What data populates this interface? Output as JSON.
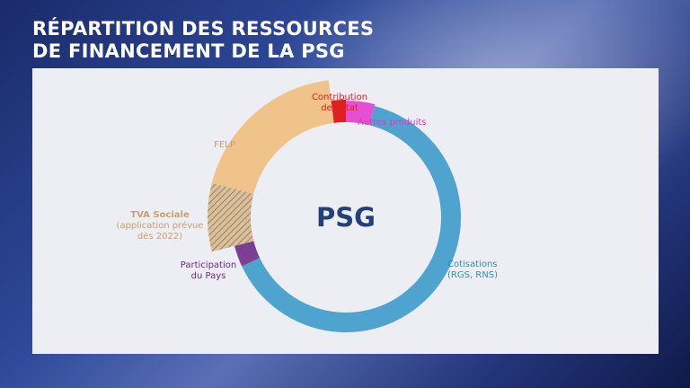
{
  "title": {
    "line1": "RÉPARTITION DES RESSOURCES",
    "line2": "DE FINANCEMENT DE LA PSG"
  },
  "colors": {
    "cotisations": "#4fa3cf",
    "participation": "#7b3f93",
    "tva": "#b8a07a",
    "felp": "#efc38a",
    "etat": "#e02020",
    "autres": "#e44fd4",
    "center": "#23407a",
    "participation_text": "#6a2a8a",
    "tva_text": "#c8a070",
    "felp_text": "#c8a070",
    "etat_text": "#e02020",
    "autres_text": "#d040c0",
    "cotisations_text": "#3a8ab5"
  },
  "chart_data": {
    "type": "pie",
    "center_label": "PSG",
    "slices": [
      {
        "key": "autres",
        "label": [
          "Autres produits"
        ],
        "value": 4
      },
      {
        "key": "cotisations",
        "label": [
          "Cotisations",
          "(RGS, RNS)"
        ],
        "value": 64
      },
      {
        "key": "participation",
        "label": [
          "Participation",
          "du Pays"
        ],
        "value": 3
      },
      {
        "key": "tva",
        "label": [
          "TVA Sociale",
          "(application prévue",
          "dès 2022)"
        ],
        "value": 8
      },
      {
        "key": "felp",
        "label": [
          "FELP"
        ],
        "value": 19
      },
      {
        "key": "etat",
        "label": [
          "Contribution",
          "de l'État"
        ],
        "value": 2
      }
    ]
  }
}
